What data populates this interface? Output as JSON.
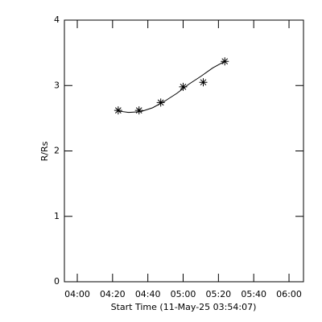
{
  "chart_data": {
    "type": "scatter",
    "ylabel": "R/Rs",
    "xlabel": "Start Time (11-May-25 03:54:07)",
    "x": [
      263.2,
      275.0,
      287.3,
      300.0,
      311.4,
      323.6
    ],
    "values": [
      2.62,
      2.62,
      2.74,
      2.98,
      3.05,
      3.37
    ],
    "marker": "asterisk",
    "color": "#000000",
    "fit": {
      "x": [
        263.2,
        269.1,
        275.9,
        282.7,
        289.5,
        296.4,
        303.2,
        310.0,
        316.8,
        323.6
      ],
      "values": [
        2.61,
        2.59,
        2.6,
        2.66,
        2.76,
        2.88,
        3.02,
        3.14,
        3.27,
        3.37
      ]
    },
    "xlim": [
      232.7,
      368.2
    ],
    "ylim": [
      0,
      4
    ],
    "xticks": [
      {
        "value": 240,
        "label": "04:00"
      },
      {
        "value": 260,
        "label": "04:20"
      },
      {
        "value": 280,
        "label": "04:40"
      },
      {
        "value": 300,
        "label": "05:00"
      },
      {
        "value": 320,
        "label": "05:20"
      },
      {
        "value": 340,
        "label": "05:40"
      },
      {
        "value": 360,
        "label": "06:00"
      }
    ],
    "yticks": [
      0,
      1,
      2,
      3,
      4
    ]
  }
}
